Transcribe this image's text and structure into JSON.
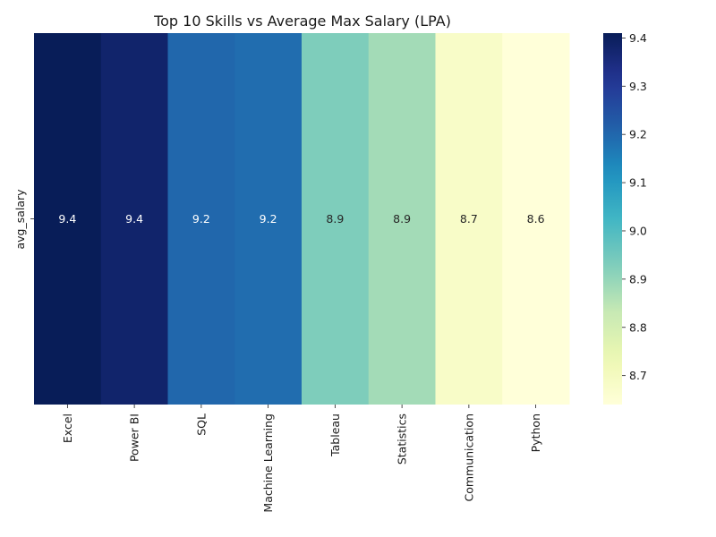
{
  "chart_data": {
    "type": "heatmap",
    "title": "Top 10 Skills vs Average Max Salary (LPA)",
    "row_labels": [
      "avg_salary"
    ],
    "categories": [
      "Excel",
      "Power BI",
      "SQL",
      "Machine Learning",
      "Tableau",
      "Statistics",
      "Communication",
      "Python"
    ],
    "values": [
      9.41,
      9.38,
      9.2,
      9.19,
      8.93,
      8.88,
      8.68,
      8.64
    ],
    "value_labels": [
      "9.4",
      "9.4",
      "9.2",
      "9.2",
      "8.9",
      "8.9",
      "8.7",
      "8.6"
    ],
    "colormap": "YlGnBu",
    "colorbar": {
      "range": [
        8.64,
        9.41
      ],
      "ticks": [
        8.7,
        8.8,
        8.9,
        9.0,
        9.1,
        9.2,
        9.3,
        9.4
      ],
      "tick_labels": [
        "8.7",
        "8.8",
        "8.9",
        "9.0",
        "9.1",
        "9.2",
        "9.3",
        "9.4"
      ]
    }
  }
}
